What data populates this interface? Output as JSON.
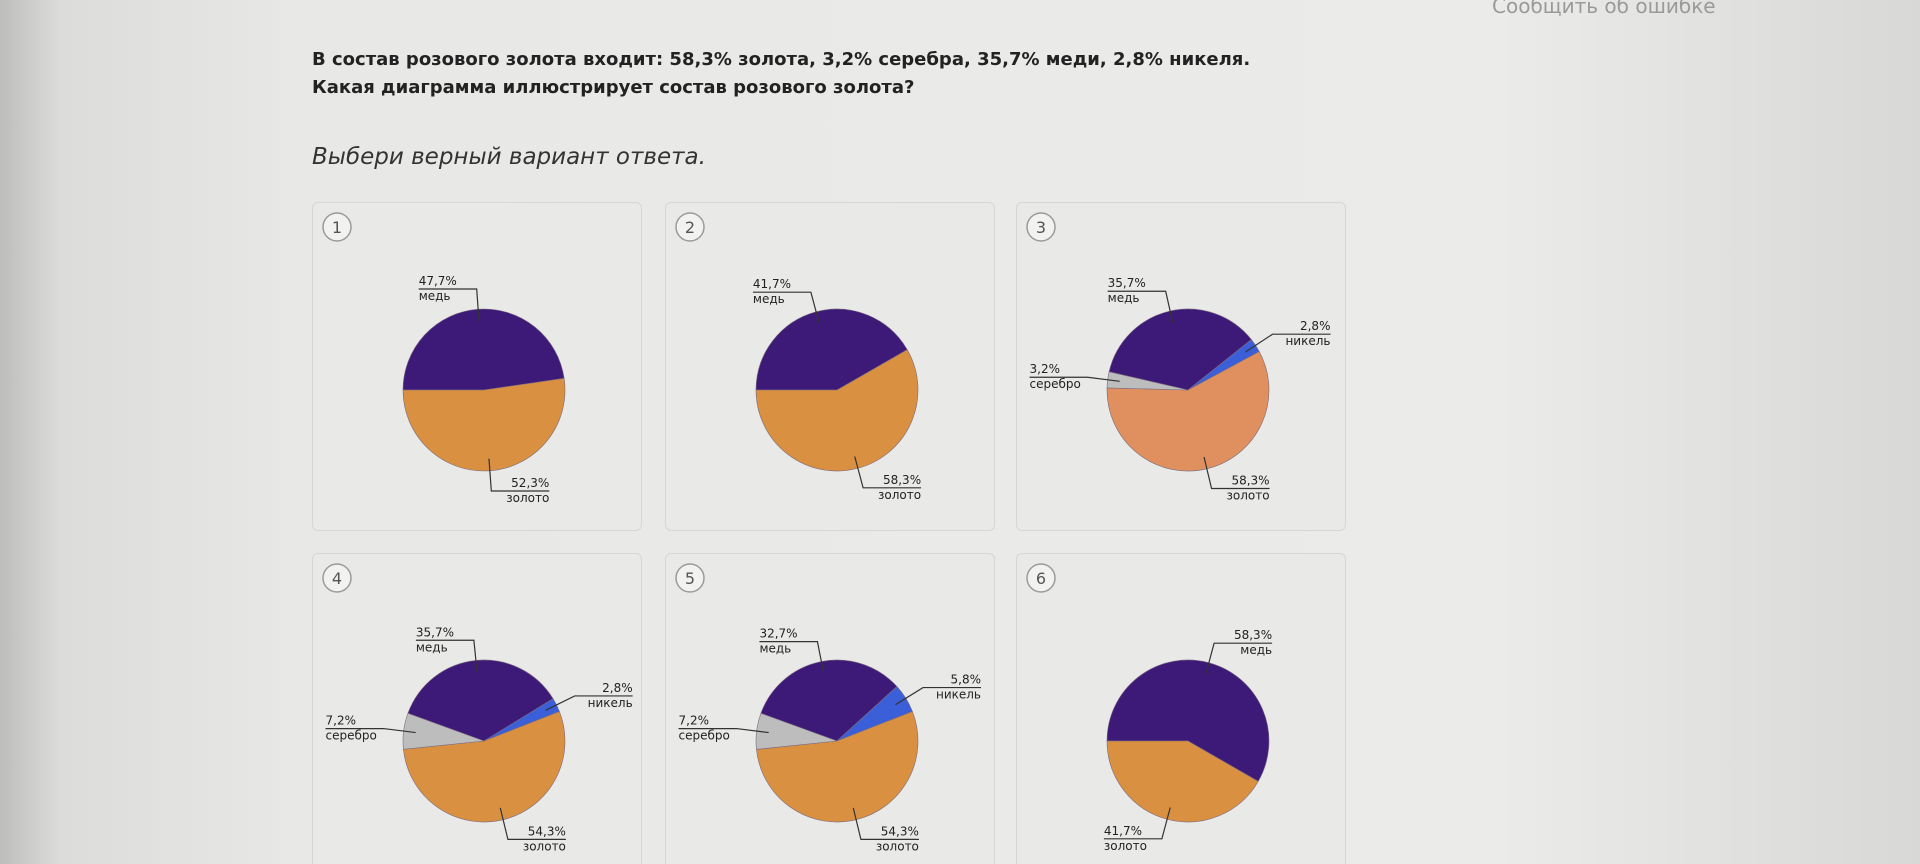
{
  "header": {
    "report_link": "Сообщить об ошибке"
  },
  "question": {
    "text": "В состав розового золота входит: 58,3% золота, 3,2% серебра, 35,7% меди, 2,8% никеля. Какая диаграмма иллюстрирует состав розового золота?",
    "instruction": "Выбери верный вариант ответа."
  },
  "chart_data": [
    {
      "type": "pie",
      "title": "1",
      "categories": [
        "медь",
        "золото"
      ],
      "values": [
        47.7,
        52.3
      ],
      "value_labels": [
        "47,7%",
        "52,3%"
      ],
      "colors": [
        "#3e1a78",
        "#d99040"
      ]
    },
    {
      "type": "pie",
      "title": "2",
      "categories": [
        "медь",
        "золото"
      ],
      "values": [
        41.7,
        58.3
      ],
      "value_labels": [
        "41,7%",
        "58,3%"
      ],
      "colors": [
        "#3e1a78",
        "#d99040"
      ]
    },
    {
      "type": "pie",
      "title": "3",
      "categories": [
        "медь",
        "никель",
        "золото",
        "серебро"
      ],
      "values": [
        35.7,
        2.8,
        58.3,
        3.2
      ],
      "value_labels": [
        "35,7%",
        "2,8%",
        "58,3%",
        "3,2%"
      ],
      "colors": [
        "#3e1a78",
        "#3b5fd8",
        "#e0905e",
        "#bdbdbd"
      ]
    },
    {
      "type": "pie",
      "title": "4",
      "categories": [
        "медь",
        "никель",
        "золото",
        "серебро"
      ],
      "values": [
        35.7,
        2.8,
        54.3,
        7.2
      ],
      "value_labels": [
        "35,7%",
        "2,8%",
        "54,3%",
        "7,2%"
      ],
      "colors": [
        "#3e1a78",
        "#3b5fd8",
        "#d99040",
        "#bdbdbd"
      ]
    },
    {
      "type": "pie",
      "title": "5",
      "categories": [
        "медь",
        "никель",
        "золото",
        "серебро"
      ],
      "values": [
        32.7,
        5.8,
        54.3,
        7.2
      ],
      "value_labels": [
        "32,7%",
        "5,8%",
        "54,3%",
        "7,2%"
      ],
      "colors": [
        "#3e1a78",
        "#3b5fd8",
        "#d99040",
        "#bdbdbd"
      ]
    },
    {
      "type": "pie",
      "title": "6",
      "categories": [
        "медь",
        "золото"
      ],
      "values": [
        58.3,
        41.7
      ],
      "value_labels": [
        "58,3%",
        "41,7%"
      ],
      "colors": [
        "#3e1a78",
        "#d99040"
      ]
    }
  ]
}
